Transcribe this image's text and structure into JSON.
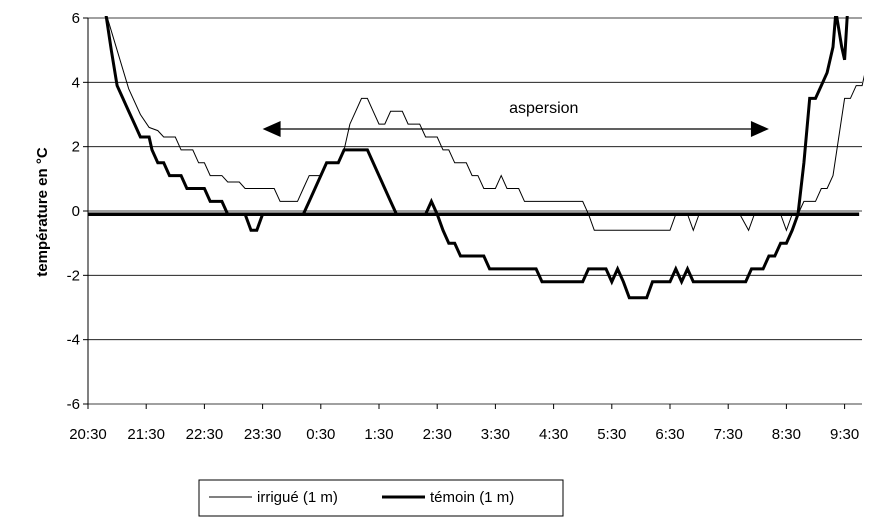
{
  "chart_data": {
    "type": "line",
    "ylabel": "température en °C",
    "xlabel": "",
    "title": "",
    "ylim": [
      -6,
      6
    ],
    "yticks": [
      6,
      4,
      2,
      0,
      -2,
      -4,
      -6
    ],
    "x_tick_labels": [
      "20:30",
      "21:30",
      "22:30",
      "23:30",
      "0:30",
      "1:30",
      "2:30",
      "3:30",
      "4:30",
      "5:30",
      "6:30",
      "7:30",
      "8:30",
      "9:30"
    ],
    "x_unit": "hours since 20:30",
    "xlim": [
      0,
      13.25
    ],
    "gridlines": "horizontal",
    "legend_position": "bottom-left",
    "annotation": {
      "text": "aspersion",
      "arrow_from_x": 3.0,
      "arrow_to_x": 11.7,
      "arrow_y": 2.55,
      "style": "double-headed-arrow"
    },
    "zero_line": {
      "y": -0.1,
      "x_from": 0.0,
      "x_to": 13.25
    },
    "series": [
      {
        "name": "irrigué (1 m)",
        "style": "thin",
        "points": [
          [
            0.3,
            6.2
          ],
          [
            0.5,
            5.0
          ],
          [
            0.7,
            3.8
          ],
          [
            0.9,
            3.0
          ],
          [
            1.05,
            2.6
          ],
          [
            1.2,
            2.5
          ],
          [
            1.3,
            2.3
          ],
          [
            1.5,
            2.3
          ],
          [
            1.6,
            1.9
          ],
          [
            1.8,
            1.9
          ],
          [
            1.9,
            1.5
          ],
          [
            2.0,
            1.5
          ],
          [
            2.1,
            1.1
          ],
          [
            2.3,
            1.1
          ],
          [
            2.4,
            0.9
          ],
          [
            2.6,
            0.9
          ],
          [
            2.7,
            0.7
          ],
          [
            3.2,
            0.7
          ],
          [
            3.3,
            0.3
          ],
          [
            3.6,
            0.3
          ],
          [
            3.7,
            0.7
          ],
          [
            3.8,
            1.1
          ],
          [
            4.0,
            1.1
          ],
          [
            4.1,
            1.5
          ],
          [
            4.3,
            1.5
          ],
          [
            4.4,
            1.9
          ],
          [
            4.5,
            2.7
          ],
          [
            4.6,
            3.1
          ],
          [
            4.7,
            3.5
          ],
          [
            4.8,
            3.5
          ],
          [
            4.9,
            3.1
          ],
          [
            5.0,
            2.7
          ],
          [
            5.1,
            2.7
          ],
          [
            5.2,
            3.1
          ],
          [
            5.4,
            3.1
          ],
          [
            5.5,
            2.7
          ],
          [
            5.7,
            2.7
          ],
          [
            5.8,
            2.3
          ],
          [
            6.0,
            2.3
          ],
          [
            6.1,
            1.9
          ],
          [
            6.2,
            1.9
          ],
          [
            6.3,
            1.5
          ],
          [
            6.5,
            1.5
          ],
          [
            6.6,
            1.1
          ],
          [
            6.7,
            1.1
          ],
          [
            6.8,
            0.7
          ],
          [
            7.0,
            0.7
          ],
          [
            7.1,
            1.1
          ],
          [
            7.2,
            0.7
          ],
          [
            7.4,
            0.7
          ],
          [
            7.5,
            0.3
          ],
          [
            8.5,
            0.3
          ],
          [
            8.6,
            -0.1
          ],
          [
            8.7,
            -0.6
          ],
          [
            10.0,
            -0.6
          ],
          [
            10.1,
            -0.1
          ],
          [
            10.3,
            -0.1
          ],
          [
            10.4,
            -0.6
          ],
          [
            10.5,
            -0.1
          ],
          [
            11.2,
            -0.1
          ],
          [
            11.35,
            -0.6
          ],
          [
            11.45,
            -0.1
          ],
          [
            11.9,
            -0.1
          ],
          [
            12.0,
            -0.6
          ],
          [
            12.1,
            -0.1
          ],
          [
            12.2,
            -0.1
          ],
          [
            12.3,
            0.3
          ],
          [
            12.5,
            0.3
          ],
          [
            12.6,
            0.7
          ],
          [
            12.7,
            0.7
          ],
          [
            12.8,
            1.1
          ],
          [
            12.9,
            2.3
          ],
          [
            13.0,
            3.5
          ],
          [
            13.1,
            3.5
          ],
          [
            13.2,
            3.9
          ],
          [
            13.3,
            3.9
          ],
          [
            13.35,
            4.3
          ],
          [
            13.4,
            4.7
          ],
          [
            13.55,
            4.7
          ],
          [
            13.6,
            5.5
          ],
          [
            13.65,
            6.2
          ]
        ]
      },
      {
        "name": "témoin (1 m)",
        "style": "thick",
        "points": [
          [
            0.3,
            6.2
          ],
          [
            0.4,
            5.0
          ],
          [
            0.5,
            3.9
          ],
          [
            0.6,
            3.5
          ],
          [
            0.7,
            3.1
          ],
          [
            0.8,
            2.7
          ],
          [
            0.9,
            2.3
          ],
          [
            1.05,
            2.3
          ],
          [
            1.1,
            1.9
          ],
          [
            1.2,
            1.5
          ],
          [
            1.3,
            1.5
          ],
          [
            1.4,
            1.1
          ],
          [
            1.6,
            1.1
          ],
          [
            1.7,
            0.7
          ],
          [
            2.0,
            0.7
          ],
          [
            2.1,
            0.3
          ],
          [
            2.3,
            0.3
          ],
          [
            2.4,
            -0.1
          ],
          [
            2.7,
            -0.1
          ],
          [
            2.8,
            -0.6
          ],
          [
            2.9,
            -0.6
          ],
          [
            3.0,
            -0.1
          ],
          [
            3.7,
            -0.1
          ],
          [
            3.8,
            0.3
          ],
          [
            3.9,
            0.7
          ],
          [
            4.0,
            1.1
          ],
          [
            4.1,
            1.5
          ],
          [
            4.3,
            1.5
          ],
          [
            4.4,
            1.9
          ],
          [
            4.8,
            1.9
          ],
          [
            4.9,
            1.5
          ],
          [
            5.0,
            1.1
          ],
          [
            5.1,
            0.7
          ],
          [
            5.2,
            0.3
          ],
          [
            5.3,
            -0.1
          ],
          [
            5.8,
            -0.1
          ],
          [
            5.9,
            0.3
          ],
          [
            6.0,
            -0.1
          ],
          [
            6.1,
            -0.6
          ],
          [
            6.2,
            -1.0
          ],
          [
            6.3,
            -1.0
          ],
          [
            6.4,
            -1.4
          ],
          [
            6.8,
            -1.4
          ],
          [
            6.9,
            -1.8
          ],
          [
            7.7,
            -1.8
          ],
          [
            7.8,
            -2.2
          ],
          [
            8.5,
            -2.2
          ],
          [
            8.6,
            -1.8
          ],
          [
            8.9,
            -1.8
          ],
          [
            9.0,
            -2.2
          ],
          [
            9.1,
            -1.8
          ],
          [
            9.2,
            -2.2
          ],
          [
            9.3,
            -2.7
          ],
          [
            9.6,
            -2.7
          ],
          [
            9.7,
            -2.2
          ],
          [
            10.0,
            -2.2
          ],
          [
            10.1,
            -1.8
          ],
          [
            10.2,
            -2.2
          ],
          [
            10.3,
            -1.8
          ],
          [
            10.4,
            -2.2
          ],
          [
            11.3,
            -2.2
          ],
          [
            11.4,
            -1.8
          ],
          [
            11.6,
            -1.8
          ],
          [
            11.7,
            -1.4
          ],
          [
            11.8,
            -1.4
          ],
          [
            11.9,
            -1.0
          ],
          [
            12.0,
            -1.0
          ],
          [
            12.1,
            -0.6
          ],
          [
            12.2,
            -0.1
          ],
          [
            12.3,
            1.5
          ],
          [
            12.4,
            3.5
          ],
          [
            12.5,
            3.5
          ],
          [
            12.6,
            3.9
          ],
          [
            12.7,
            4.3
          ],
          [
            12.8,
            5.1
          ],
          [
            12.85,
            6.2
          ],
          [
            12.95,
            5.1
          ],
          [
            13.0,
            4.7
          ],
          [
            13.05,
            6.2
          ]
        ]
      }
    ]
  }
}
